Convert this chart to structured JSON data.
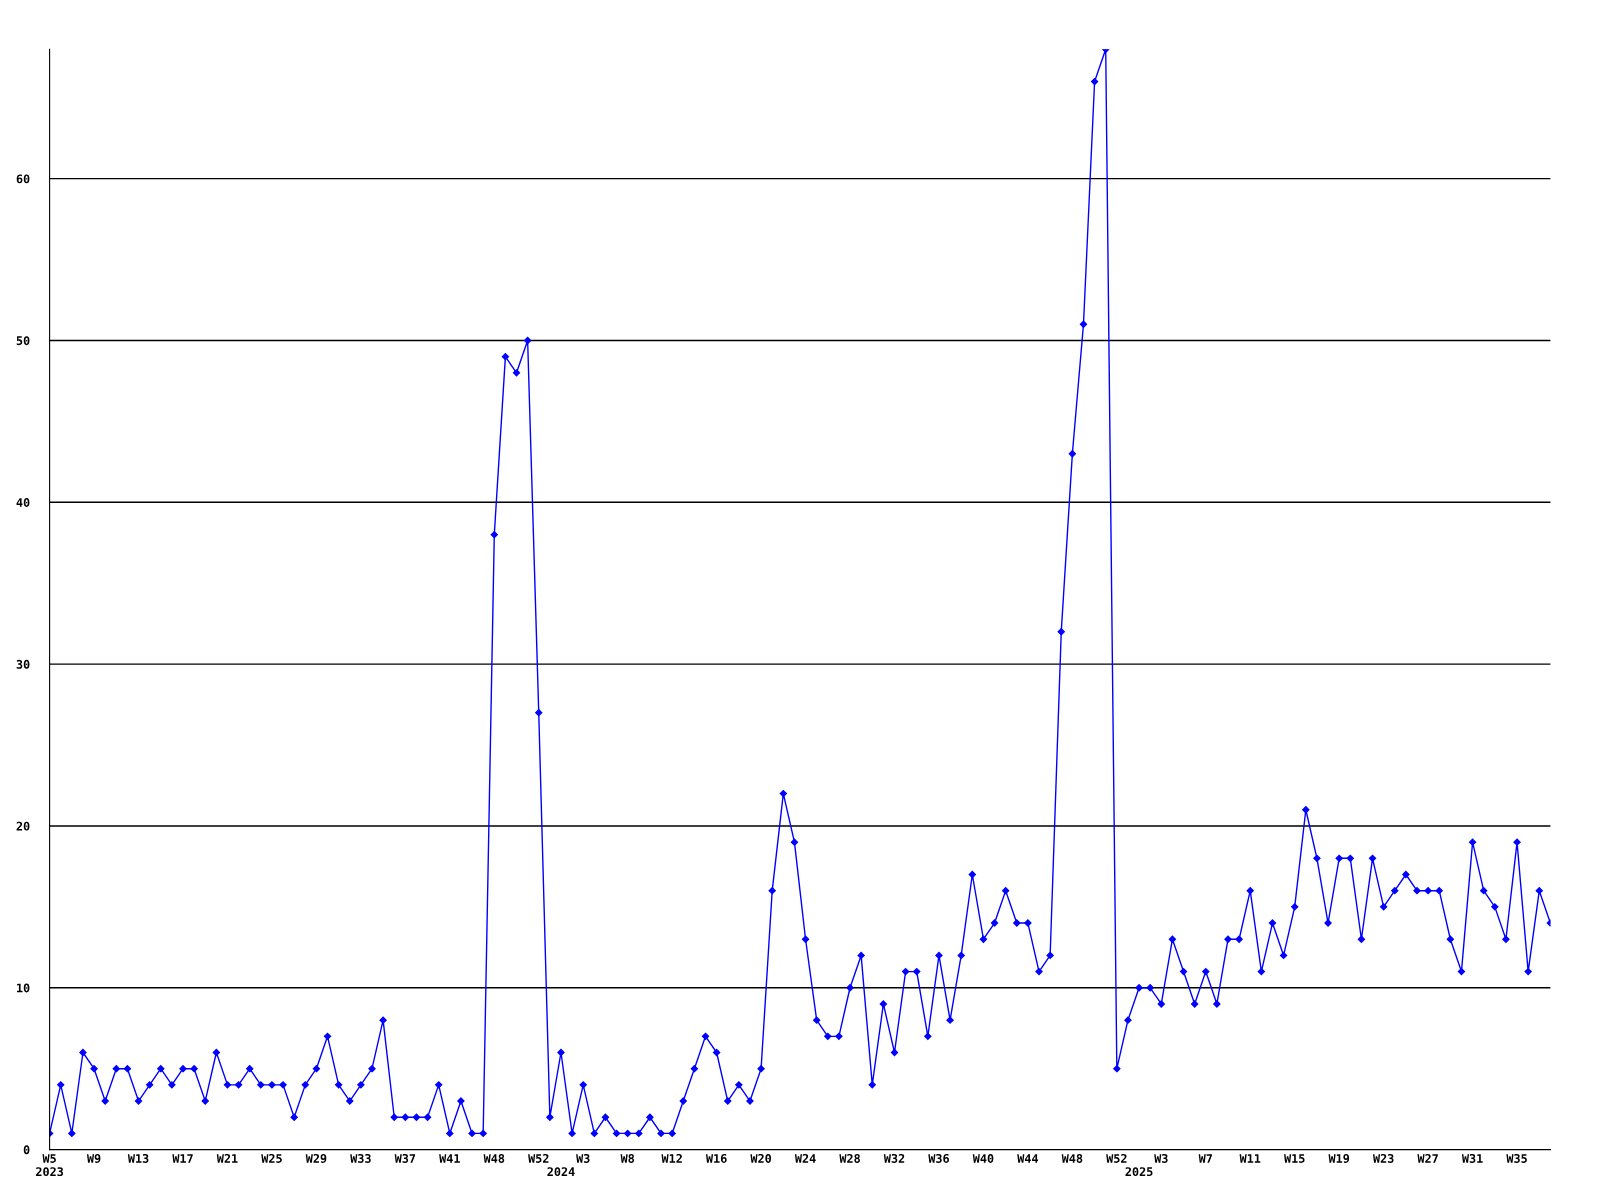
{
  "chart_data": {
    "type": "line",
    "categories": [
      "W5\n2023",
      null,
      null,
      null,
      "W9",
      null,
      null,
      null,
      "W13",
      null,
      null,
      null,
      "W17",
      null,
      null,
      null,
      "W21",
      null,
      null,
      null,
      "W25",
      null,
      null,
      null,
      "W29",
      null,
      null,
      null,
      "W33",
      null,
      null,
      null,
      "W37",
      null,
      null,
      null,
      "W41",
      null,
      null,
      null,
      "W48",
      null,
      null,
      null,
      "W52",
      null,
      "\n2024",
      null,
      "W3",
      null,
      null,
      null,
      "W8",
      null,
      null,
      null,
      "W12",
      null,
      null,
      null,
      "W16",
      null,
      null,
      null,
      "W20",
      null,
      null,
      null,
      "W24",
      null,
      null,
      null,
      "W28",
      null,
      null,
      null,
      "W32",
      null,
      null,
      null,
      "W36",
      null,
      null,
      null,
      "W40",
      null,
      null,
      null,
      "W44",
      null,
      null,
      null,
      "W48",
      null,
      null,
      null,
      "W52",
      null,
      "\n2025",
      null,
      "W3",
      null,
      null,
      null,
      "W7",
      null,
      null,
      null,
      "W11",
      null,
      null,
      null,
      "W15",
      null,
      null,
      null,
      "W19",
      null,
      null,
      null,
      "W23",
      null,
      null,
      null,
      "W27",
      null,
      null,
      null,
      "W31",
      null,
      null,
      null,
      "W35",
      null,
      null,
      null
    ],
    "series": [
      {
        "color": "#0000ff",
        "values": [
          1,
          4,
          1,
          6,
          5,
          3,
          5,
          5,
          3,
          4,
          5,
          4,
          5,
          5,
          3,
          6,
          4,
          4,
          5,
          4,
          4,
          4,
          2,
          4,
          5,
          7,
          4,
          3,
          4,
          5,
          8,
          2,
          2,
          2,
          2,
          4,
          1,
          3,
          1,
          1,
          38,
          49,
          48,
          50,
          27,
          2,
          6,
          1,
          4,
          1,
          2,
          1,
          1,
          1,
          2,
          1,
          1,
          3,
          5,
          7,
          6,
          3,
          4,
          3,
          5,
          16,
          22,
          19,
          13,
          8,
          7,
          7,
          10,
          12,
          4,
          9,
          6,
          11,
          11,
          7,
          12,
          8,
          12,
          17,
          13,
          14,
          16,
          14,
          14,
          11,
          12,
          32,
          43,
          51,
          66,
          68,
          5,
          8,
          10,
          10,
          9,
          13,
          11,
          9,
          11,
          9,
          13,
          13,
          16,
          11,
          14,
          12,
          15,
          21,
          18,
          14,
          18,
          18,
          13,
          18,
          15,
          16,
          17,
          16,
          16,
          16,
          13,
          11,
          19,
          16,
          15,
          13,
          19,
          11,
          16,
          14
        ]
      }
    ],
    "ylim": [
      0,
      68
    ],
    "yticks": [
      0,
      10,
      20,
      30,
      40,
      50,
      60
    ],
    "grid": "y",
    "marker": "diamond",
    "line_style": "solid"
  }
}
